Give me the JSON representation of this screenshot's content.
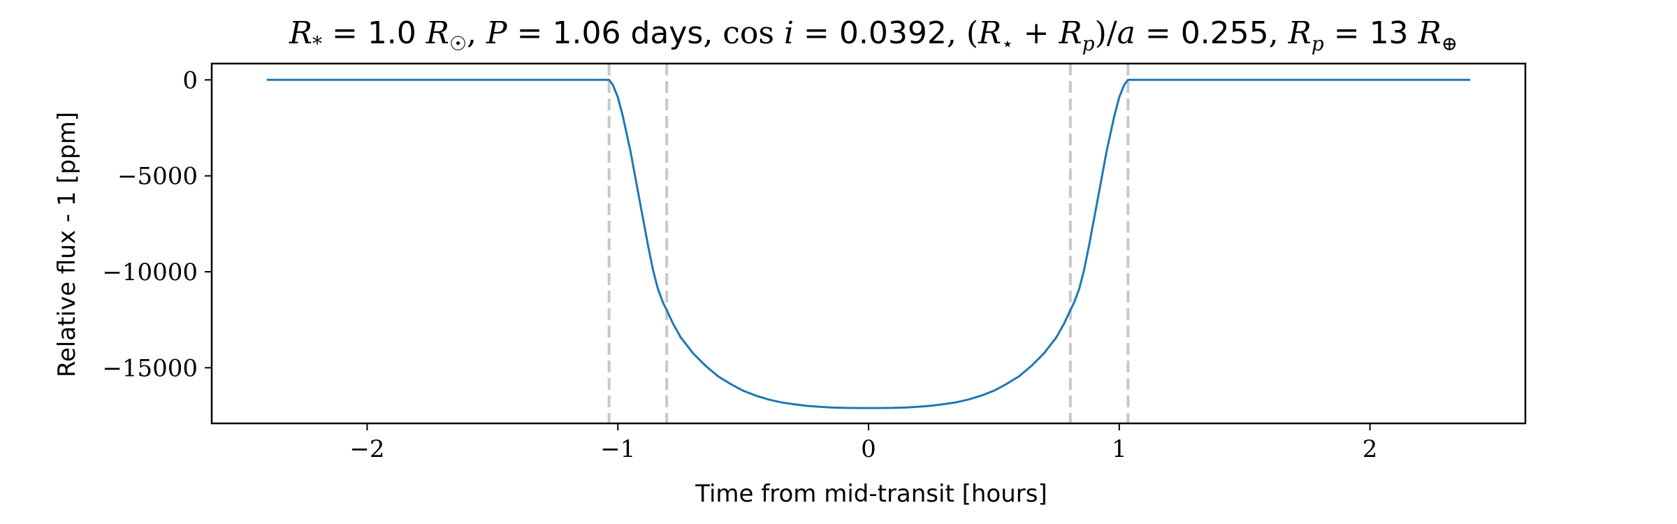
{
  "chart_data": {
    "type": "line",
    "title": "R* = 1.0 R☉, P = 1.06 days, cos i = 0.0392, (R* + Rp)/a = 0.255, Rp = 13 R⊕",
    "title_parts": {
      "stellar_radius": "1.0",
      "period": "1.06",
      "period_unit": "days",
      "cos_inclination": "0.0392",
      "scaled_sum_radius": "0.255",
      "planet_radius": "13"
    },
    "xlabel": "Time from mid-transit [hours]",
    "ylabel": "Relative flux - 1 [ppm]",
    "xlim": [
      -2.62,
      2.62
    ],
    "ylim": [
      -17900,
      850
    ],
    "x_ticks": [
      -2,
      -1,
      0,
      1,
      2
    ],
    "x_tick_labels": [
      "−2",
      "−1",
      "0",
      "1",
      "2"
    ],
    "y_ticks": [
      0,
      -5000,
      -10000,
      -15000
    ],
    "y_tick_labels": [
      "0",
      "−5000",
      "−10000",
      "−15000"
    ],
    "contact_points": [
      -1.035,
      -0.805,
      0.805,
      1.035
    ],
    "series": [
      {
        "color": "#1f77b4",
        "x": [
          -2.4,
          -1.2,
          -1.04,
          -1.035,
          -1.02,
          -1.0,
          -0.98,
          -0.95,
          -0.92,
          -0.9,
          -0.88,
          -0.86,
          -0.84,
          -0.82,
          -0.805,
          -0.78,
          -0.75,
          -0.7,
          -0.65,
          -0.6,
          -0.55,
          -0.5,
          -0.45,
          -0.4,
          -0.35,
          -0.3,
          -0.25,
          -0.2,
          -0.15,
          -0.1,
          -0.05,
          0.0,
          0.05,
          0.1,
          0.15,
          0.2,
          0.25,
          0.3,
          0.35,
          0.4,
          0.45,
          0.5,
          0.55,
          0.6,
          0.65,
          0.7,
          0.75,
          0.78,
          0.805,
          0.82,
          0.84,
          0.86,
          0.88,
          0.9,
          0.92,
          0.95,
          0.98,
          1.0,
          1.02,
          1.035,
          1.04,
          1.2,
          2.4
        ],
        "y": [
          0,
          0,
          0,
          0,
          -250,
          -900,
          -1900,
          -3700,
          -5800,
          -7200,
          -8600,
          -9900,
          -10900,
          -11600,
          -12000,
          -12700,
          -13400,
          -14250,
          -14900,
          -15450,
          -15850,
          -16200,
          -16450,
          -16650,
          -16800,
          -16900,
          -16980,
          -17030,
          -17070,
          -17090,
          -17100,
          -17100,
          -17100,
          -17090,
          -17070,
          -17030,
          -16980,
          -16900,
          -16800,
          -16650,
          -16450,
          -16200,
          -15850,
          -15450,
          -14900,
          -14250,
          -13400,
          -12700,
          -12000,
          -11600,
          -10900,
          -9900,
          -8600,
          -7200,
          -5800,
          -3700,
          -1900,
          -900,
          -250,
          0,
          0,
          0,
          0
        ]
      }
    ],
    "grid": false,
    "legend": "none"
  }
}
